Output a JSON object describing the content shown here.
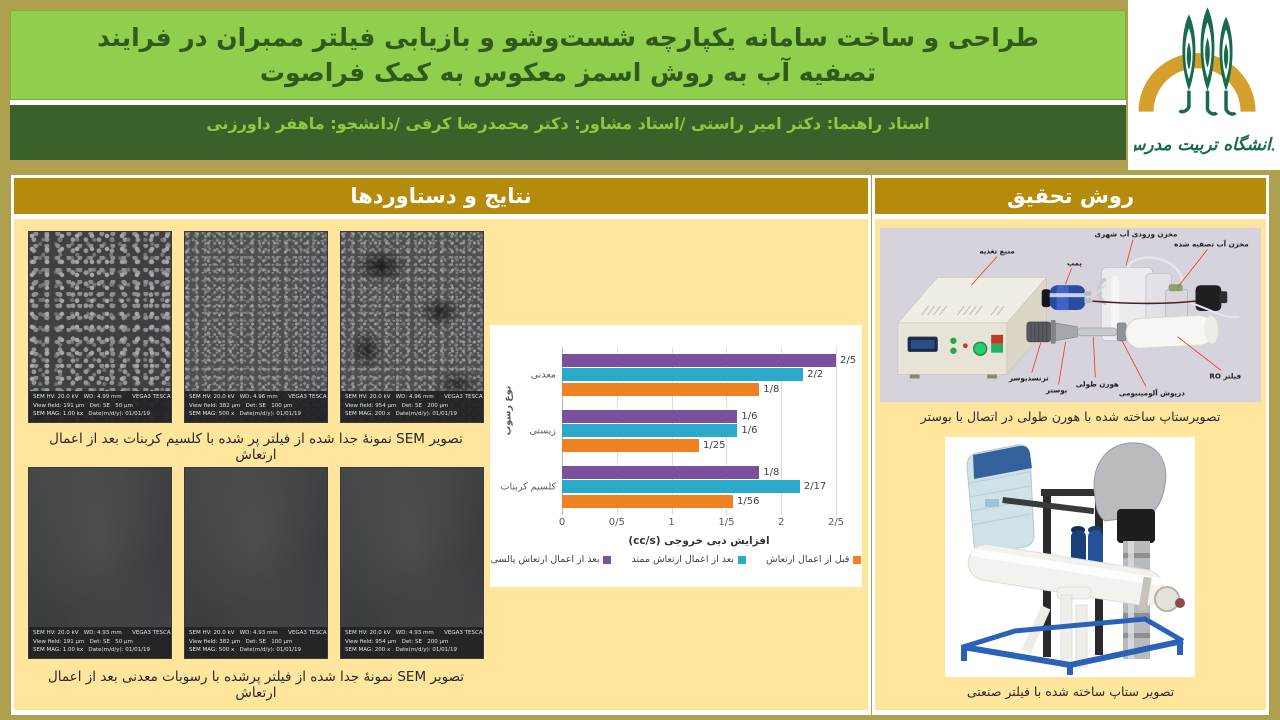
{
  "header": {
    "title": "طراحی و ساخت سامانه یکپارچه شست‌وشو و بازیابی فیلتر ممبران در فرایند تصفیه آب به روش اسمز معکوس به کمک فراصوت",
    "advisors": "استاد راهنما: دکتر امیر راستی /استاد مشاور: دکتر محمدرضا کرفی /دانشجو: ماهفر داورزنی",
    "logo_text": "دانشگاه تربیت مدرس"
  },
  "results": {
    "title": "نتایج و دستاوردها",
    "caption_top": "تصویر SEM نمونۀ جدا شده از فیلتر پر شده با کلسیم کربنات  بعد از اعمال ارتعاش",
    "caption_bottom": "تصویر SEM نمونۀ جدا شده از فیلتر پرشده با رسوبات معدنی بعد از اعمال ارتعاش",
    "sem_top": [
      {
        "lines": [
          "SEM HV: 20.0 kV   WD: 4.96 mm      VEGA3 TESCAN",
          "View field: 954 μm   Det: SE   200 μm",
          "SEM MAG: 200 x   Date(m/d/y): 01/01/19"
        ]
      },
      {
        "lines": [
          "SEM HV: 20.0 kV   WD: 4.96 mm      VEGA3 TESCAN",
          "View field: 382 μm   Det: SE   100 μm",
          "SEM MAG: 500 x   Date(m/d/y): 01/01/19"
        ]
      },
      {
        "lines": [
          "SEM HV: 20.0 kV   WD: 4.99 mm      VEGA3 TESCAN",
          "View field: 191 μm   Det: SE   50 μm",
          "SEM MAG: 1.00 kx   Date(m/d/y): 01/01/19"
        ]
      }
    ],
    "sem_bottom": [
      {
        "lines": [
          "SEM HV: 20.0 kV   WD: 4.93 mm      VEGA3 TESCAN",
          "View field: 954 μm   Det: SE   200 μm",
          "SEM MAG: 200 x   Date(m/d/y): 01/01/19"
        ]
      },
      {
        "lines": [
          "SEM HV: 20.0 kV   WD: 4.93 mm      VEGA3 TESCAN",
          "View field: 382 μm   Det: SE   100 μm",
          "SEM MAG: 500 x   Date(m/d/y): 01/01/19"
        ]
      },
      {
        "lines": [
          "SEM HV: 20.0 kV   WD: 4.93 mm      VEGA3 TESCAN",
          "View field: 191 μm   Det: SE   50 μm",
          "SEM MAG: 1.00 kx   Date(m/d/y): 01/01/19"
        ]
      }
    ]
  },
  "method": {
    "title": "روش تحقیق",
    "caption_top": "تصویرستاپ ساخته شده با هورن طولی  در اتصال با بوستر",
    "caption_bottom": "تصویر ستاپ ساخته شده با فیلتر صنعتی",
    "diagram_labels": [
      "منبع تغذیه",
      "پمپ",
      "مخزن ورودی آب شهری",
      "مخزن آب تصفیه شده",
      "ترنسدیوسر",
      "بوستر",
      "هورن طولی",
      "درپوش آلومینیومی",
      "فیلتر RO"
    ]
  },
  "chart_data": {
    "type": "bar",
    "orientation": "horizontal",
    "title": "",
    "xlabel": "افزایش دبی خروجی (cc/s)",
    "ylabel": "نوع رسوب",
    "categories": [
      "معدنی",
      "زیستی",
      "کلسیم کربنات"
    ],
    "xlim": [
      0,
      2.5
    ],
    "xticks": [
      "0",
      "0/5",
      "1",
      "1/5",
      "2",
      "2/5"
    ],
    "grid": true,
    "legend_position": "bottom",
    "series": [
      {
        "name": "بعد از اعمال ارتعاش پالسی",
        "color": "#7B519D",
        "values": [
          2.5,
          1.6,
          1.8
        ],
        "labels": [
          "2/5",
          "1/6",
          "1/8"
        ]
      },
      {
        "name": "بعد از اعمال ارتعاش ممتد",
        "color": "#2BA9CB",
        "values": [
          2.2,
          1.6,
          2.17
        ],
        "labels": [
          "2/2",
          "1/6",
          "2/17"
        ]
      },
      {
        "name": "قبل از اعمال ارتعاش",
        "color": "#EE8122",
        "values": [
          1.8,
          1.25,
          1.56
        ],
        "labels": [
          "1/8",
          "1/25",
          "1/56"
        ]
      }
    ],
    "colors": {
      "header_gold": "#B58B0E",
      "panel_yellow": "#FFE69C",
      "title_green": "#90CE4E",
      "dark_green": "#3B612B",
      "page_olive": "#AEA04E"
    }
  }
}
